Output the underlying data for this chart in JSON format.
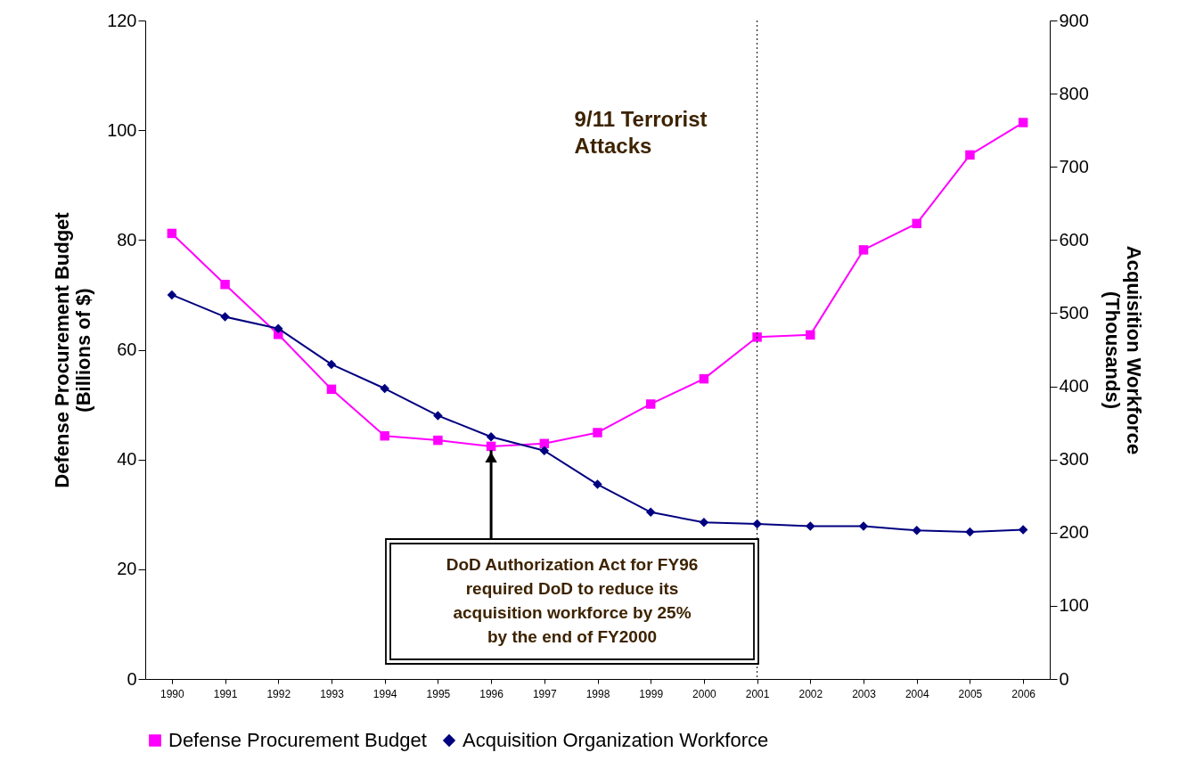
{
  "chart_data": {
    "type": "line",
    "categories": [
      "1990",
      "1991",
      "1992",
      "1993",
      "1994",
      "1995",
      "1996",
      "1997",
      "1998",
      "1999",
      "2000",
      "2001",
      "2002",
      "2003",
      "2004",
      "2005",
      "2006"
    ],
    "series": [
      {
        "name": "Defense Procurement Budget",
        "color": "#ff00ff",
        "marker": "square",
        "values": [
          81.2,
          71.9,
          62.8,
          52.8,
          44.3,
          43.5,
          42.4,
          42.9,
          44.9,
          50.1,
          54.7,
          62.3,
          62.7,
          78.2,
          83.0,
          95.5,
          101.4
        ]
      },
      {
        "name": "Acquisition Organization Workforce",
        "color": "#000080",
        "marker": "diamond",
        "axis": "y2",
        "values": [
          525,
          495,
          479,
          430,
          397,
          360,
          331,
          312,
          266,
          228,
          214,
          212,
          209,
          209,
          203,
          201,
          204
        ]
      }
    ],
    "ylabel": "Defense Procurement Budget (Billions of $)",
    "y2label": "Acquisition Workforce (Thousands)",
    "ylim": [
      0,
      120
    ],
    "yticks": [
      0,
      20,
      40,
      60,
      80,
      100,
      120
    ],
    "y2lim": [
      0,
      900
    ],
    "y2ticks": [
      0,
      100,
      200,
      300,
      400,
      500,
      600,
      700,
      800,
      900
    ],
    "ref_lines": [
      {
        "axis": "x",
        "value": "2001",
        "label": "9/11 Terrorist Attacks",
        "line_style": "dotted"
      }
    ],
    "annotations": [
      {
        "text": "DoD Authorization Act for FY96 required DoD to reduce its acquisition workforce by 25% by the end of FY2000",
        "x": "1996",
        "y": 41.7
      }
    ],
    "grid": false,
    "legend": "bottom"
  }
}
